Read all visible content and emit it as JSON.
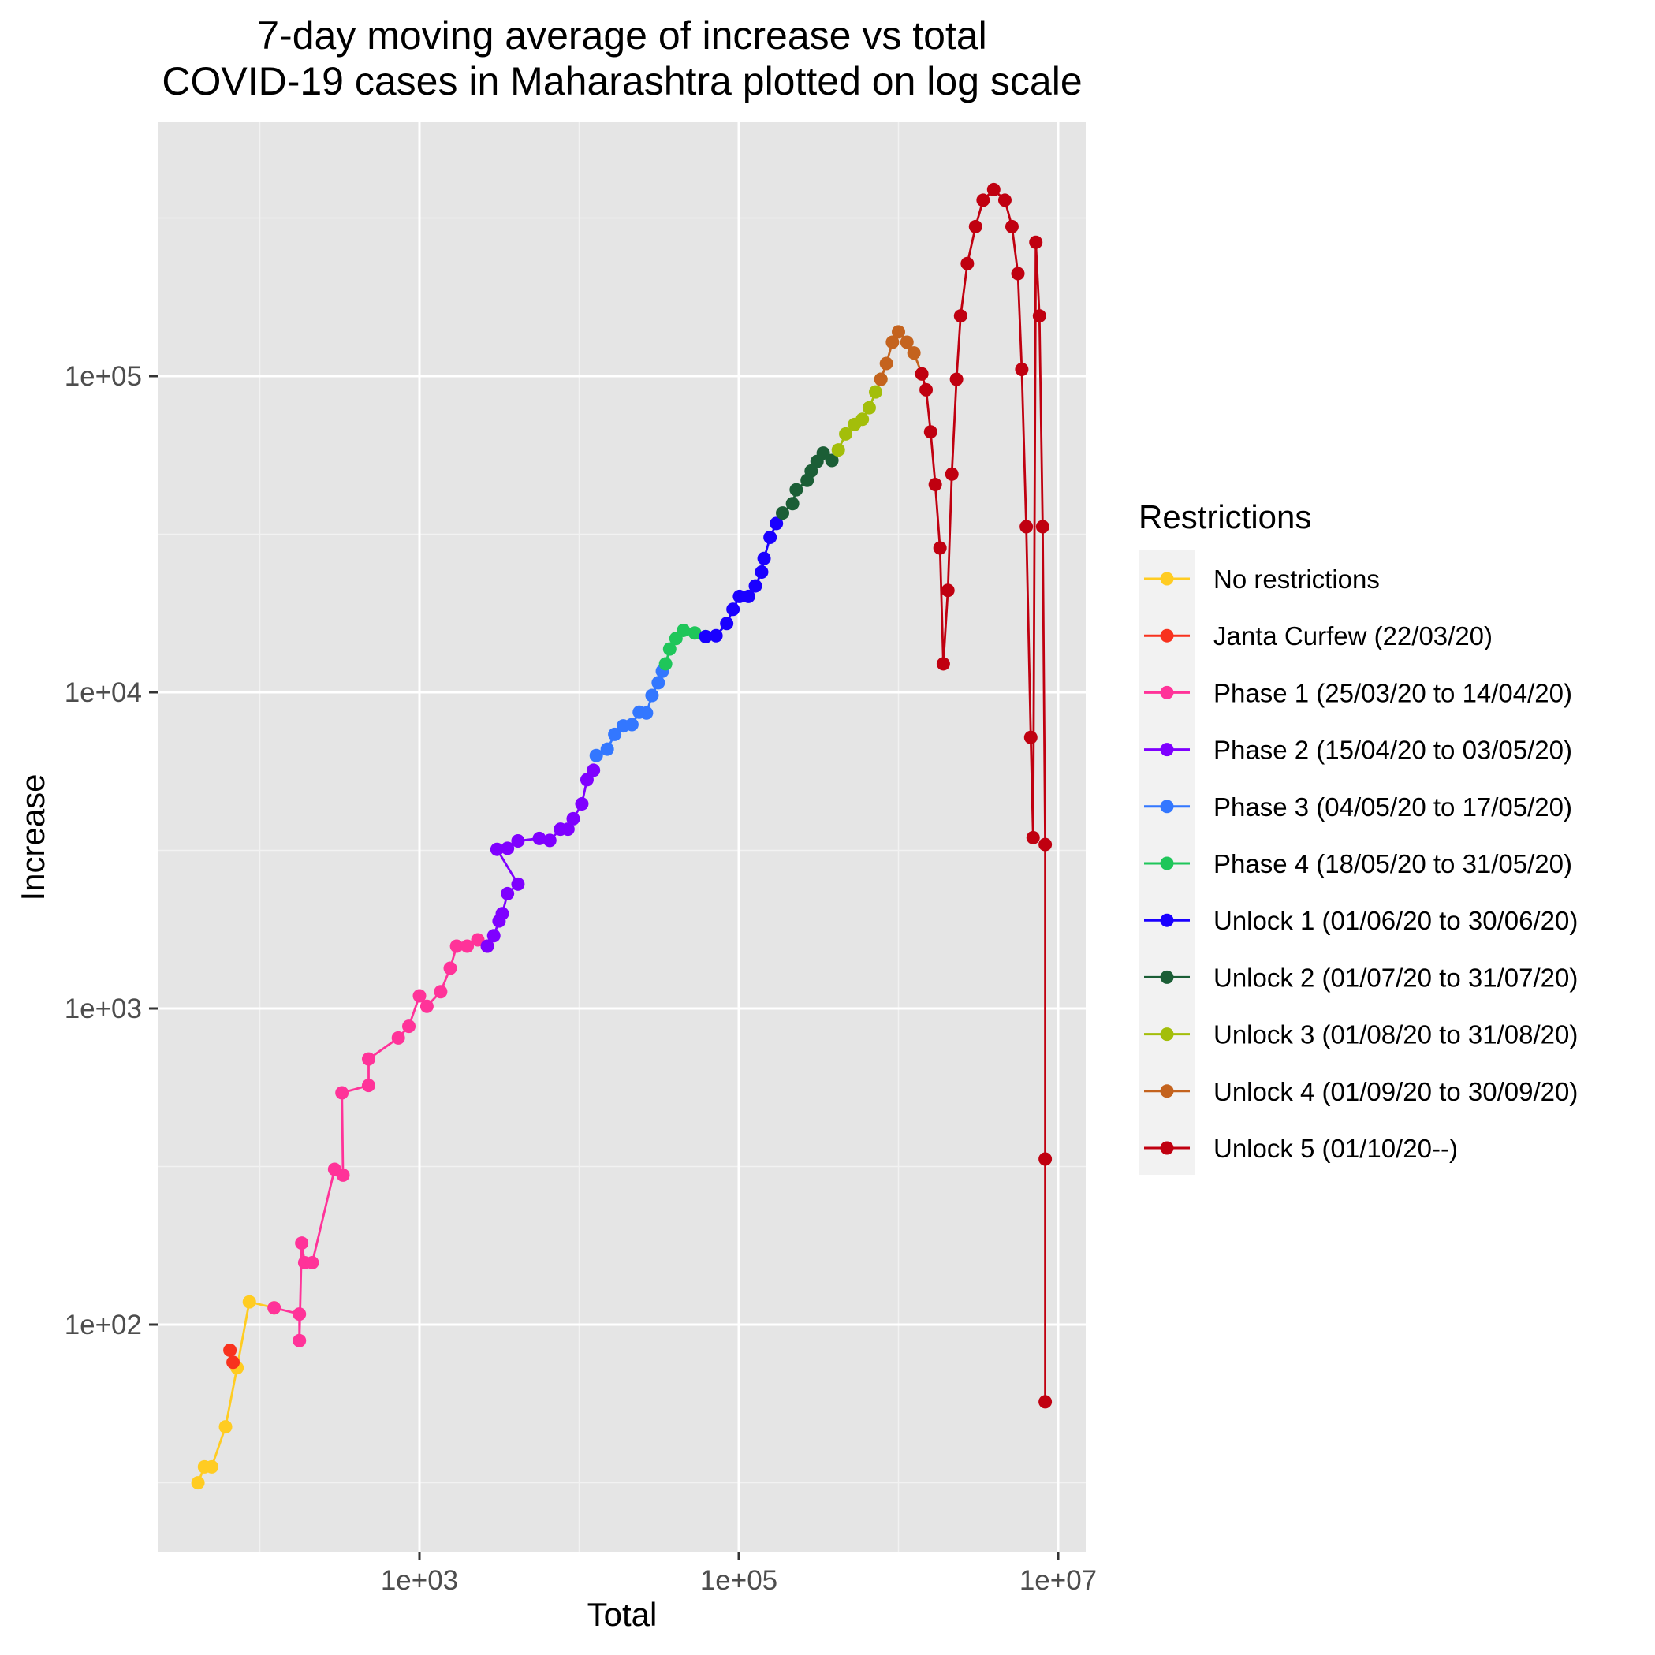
{
  "chart_data": {
    "type": "line",
    "title": [
      "7-day moving average of increase vs total",
      "COVID-19 cases in Maharashtra plotted on log scale"
    ],
    "xlabel": "Total",
    "ylabel": "Increase",
    "xscale": "log10",
    "yscale": "log10",
    "xlim": [
      30,
      14000000
    ],
    "ylim": [
      24,
      570000
    ],
    "xticks": [
      {
        "value": 1000,
        "label": "1e+03"
      },
      {
        "value": 100000,
        "label": "1e+05"
      },
      {
        "value": 10000000,
        "label": "1e+07"
      }
    ],
    "yticks": [
      {
        "value": 100,
        "label": "1e+02"
      },
      {
        "value": 1000,
        "label": "1e+03"
      },
      {
        "value": 10000,
        "label": "1e+04"
      },
      {
        "value": 100000,
        "label": "1e+05"
      }
    ],
    "grid": true,
    "legend": {
      "title": "Restrictions",
      "placement": "right"
    },
    "series": [
      {
        "name": "No restrictions",
        "color": "#FFCC22",
        "points": [
          [
            41,
            31.6
          ],
          [
            45,
            35.5
          ],
          [
            50,
            35.5
          ],
          [
            61,
            47.5
          ],
          [
            72,
            73
          ],
          [
            86,
            118
          ],
          [
            123,
            113
          ]
        ]
      },
      {
        "name": "Janta Curfew (22/03/20)",
        "color": "#F8321E",
        "points": [
          [
            65,
            83
          ],
          [
            68,
            76
          ]
        ]
      },
      {
        "name": "Phase 1 (25/03/20 to 14/04/20)",
        "color": "#FF3399",
        "points": [
          [
            123,
            113
          ],
          [
            177,
            108
          ],
          [
            177,
            89
          ],
          [
            183,
            181
          ],
          [
            191,
            157
          ],
          [
            213,
            157
          ],
          [
            294,
            310
          ],
          [
            332,
            297
          ],
          [
            327,
            541
          ],
          [
            480,
            571
          ],
          [
            480,
            692
          ],
          [
            737,
            807
          ],
          [
            858,
            878
          ],
          [
            1000,
            1096
          ],
          [
            1113,
            1016
          ],
          [
            1358,
            1130
          ],
          [
            1558,
            1340
          ],
          [
            1709,
            1574
          ],
          [
            1991,
            1574
          ],
          [
            2320,
            1648
          ],
          [
            2660,
            1574
          ]
        ]
      },
      {
        "name": "Phase 2 (15/04/20 to 03/05/20)",
        "color": "#7F00FF",
        "points": [
          [
            2660,
            1574
          ],
          [
            2920,
            1698
          ],
          [
            3150,
            1890
          ],
          [
            3300,
            1995
          ],
          [
            3560,
            2307
          ],
          [
            4140,
            2473
          ],
          [
            3060,
            3186
          ],
          [
            3560,
            3210
          ],
          [
            4140,
            3388
          ],
          [
            5630,
            3450
          ],
          [
            6550,
            3400
          ],
          [
            7640,
            3690
          ],
          [
            8510,
            3690
          ],
          [
            9180,
            3981
          ],
          [
            10400,
            4436
          ],
          [
            11200,
            5290
          ],
          [
            12300,
            5666
          ]
        ]
      },
      {
        "name": "Phase 3 (04/05/20 to 17/05/20)",
        "color": "#3377FF",
        "points": [
          [
            12800,
            6310
          ],
          [
            15000,
            6607
          ],
          [
            16700,
            7360
          ],
          [
            18900,
            7830
          ],
          [
            21400,
            7900
          ],
          [
            23800,
            8650
          ],
          [
            26400,
            8600
          ],
          [
            28600,
            9770
          ],
          [
            31300,
            10720
          ],
          [
            33200,
            11660
          ]
        ]
      },
      {
        "name": "Phase 4 (18/05/20 to 31/05/20)",
        "color": "#1FC65A",
        "points": [
          [
            34800,
            12300
          ],
          [
            36900,
            13700
          ],
          [
            40400,
            14800
          ],
          [
            45000,
            15700
          ],
          [
            53000,
            15400
          ],
          [
            62000,
            15000
          ]
        ]
      },
      {
        "name": "Unlock 1 (01/06/20 to 30/06/20)",
        "color": "#1A00FF",
        "points": [
          [
            62000,
            15000
          ],
          [
            72000,
            15100
          ],
          [
            84000,
            16500
          ],
          [
            92000,
            18300
          ],
          [
            101000,
            20100
          ],
          [
            115000,
            20100
          ],
          [
            127000,
            21700
          ],
          [
            139000,
            24000
          ],
          [
            144000,
            26500
          ],
          [
            157000,
            30900
          ],
          [
            172000,
            34200
          ]
        ]
      },
      {
        "name": "Unlock 2 (01/07/20 to 31/07/20)",
        "color": "#1B5E36",
        "points": [
          [
            188000,
            36900
          ],
          [
            217000,
            39500
          ],
          [
            229000,
            43700
          ],
          [
            268000,
            46800
          ],
          [
            284000,
            50100
          ],
          [
            309000,
            53700
          ],
          [
            338000,
            57100
          ],
          [
            383000,
            54100
          ]
        ]
      },
      {
        "name": "Unlock 3 (01/08/20 to 31/08/20)",
        "color": "#A3BE0A",
        "points": [
          [
            420000,
            58400
          ],
          [
            467000,
            65600
          ],
          [
            530000,
            70300
          ],
          [
            594000,
            73000
          ],
          [
            656000,
            79400
          ],
          [
            719000,
            89100
          ],
          [
            776000,
            97700
          ]
        ]
      },
      {
        "name": "Unlock 4 (01/09/20 to 30/09/20)",
        "color": "#C4631E",
        "points": [
          [
            776000,
            97700
          ],
          [
            840000,
            109600
          ],
          [
            917000,
            128000
          ],
          [
            1000000,
            138000
          ],
          [
            1130000,
            128000
          ],
          [
            1250000,
            118400
          ],
          [
            1400000,
            101600
          ]
        ]
      },
      {
        "name": "Unlock 5 (01/10/20--)",
        "color": "#C00010",
        "points": [
          [
            1400000,
            101600
          ],
          [
            1490000,
            90500
          ],
          [
            1590000,
            66600
          ],
          [
            1700000,
            45400
          ],
          [
            1820000,
            28600
          ],
          [
            1910000,
            12300
          ],
          [
            2040000,
            21000
          ],
          [
            2160000,
            49000
          ],
          [
            2310000,
            97700
          ],
          [
            2450000,
            155000
          ],
          [
            2700000,
            227000
          ],
          [
            3040000,
            297000
          ],
          [
            3390000,
            360000
          ],
          [
            3950000,
            389000
          ],
          [
            4640000,
            360000
          ],
          [
            5140000,
            297000
          ],
          [
            5600000,
            211000
          ],
          [
            5920000,
            105000
          ],
          [
            6320000,
            33400
          ],
          [
            6740000,
            7200
          ],
          [
            6970000,
            3470
          ],
          [
            7250000,
            265000
          ],
          [
            7640000,
            155000
          ],
          [
            8000000,
            33400
          ],
          [
            8300000,
            3300
          ],
          [
            8300000,
            334
          ],
          [
            8300000,
            57
          ]
        ]
      }
    ]
  }
}
